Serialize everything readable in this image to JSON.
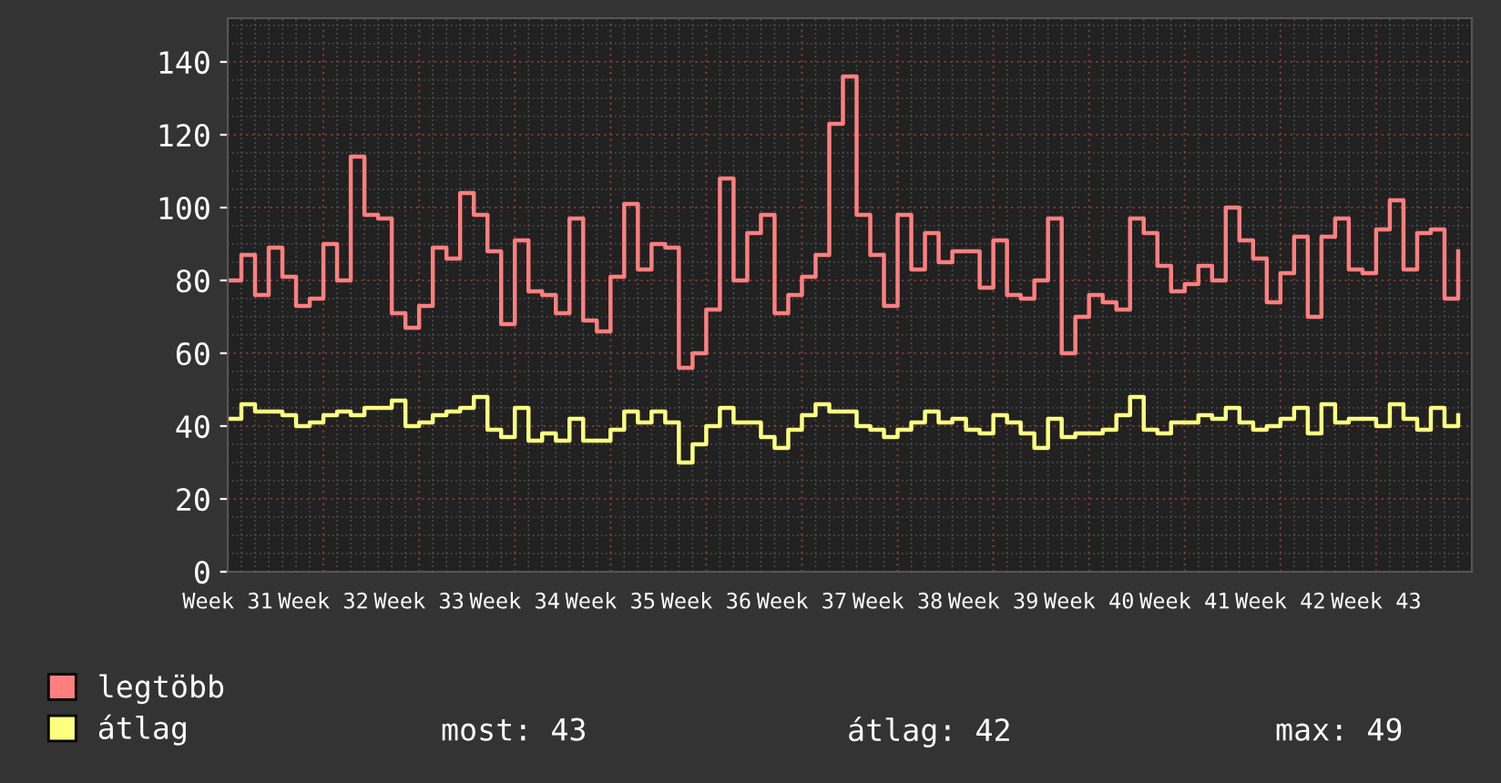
{
  "chart_data": {
    "type": "step",
    "categories": [
      "Week 31",
      null,
      null,
      null,
      null,
      null,
      null,
      "Week 32",
      null,
      null,
      null,
      null,
      null,
      null,
      "Week 33",
      null,
      null,
      null,
      null,
      null,
      null,
      "Week 34",
      null,
      null,
      null,
      null,
      null,
      null,
      "Week 35",
      null,
      null,
      null,
      null,
      null,
      null,
      "Week 36",
      null,
      null,
      null,
      null,
      null,
      null,
      "Week 37",
      null,
      null,
      null,
      null,
      null,
      null,
      "Week 38",
      null,
      null,
      null,
      null,
      null,
      null,
      "Week 39",
      null,
      null,
      null,
      null,
      null,
      null,
      "Week 40",
      null,
      null,
      null,
      null,
      null,
      null,
      "Week 41",
      null,
      null,
      null,
      null,
      null,
      null,
      "Week 42",
      null,
      null,
      null,
      null,
      null,
      null,
      "Week 43",
      null,
      null,
      null,
      null,
      null,
      null
    ],
    "ylim": [
      0,
      152
    ],
    "yticks": [
      0,
      20,
      40,
      60,
      80,
      100,
      120,
      140
    ],
    "grid": true,
    "legend": "bottom",
    "series": [
      {
        "name": "legtöbb",
        "color": "#ff7f7f",
        "values": [
          80,
          87,
          76,
          89,
          81,
          73,
          75,
          90,
          80,
          114,
          98,
          97,
          71,
          67,
          73,
          89,
          86,
          104,
          98,
          88,
          68,
          91,
          77,
          76,
          71,
          97,
          69,
          66,
          81,
          101,
          83,
          90,
          89,
          56,
          60,
          72,
          108,
          80,
          93,
          98,
          71,
          76,
          81,
          87,
          123,
          136,
          98,
          87,
          73,
          98,
          83,
          93,
          85,
          88,
          88,
          78,
          91,
          76,
          75,
          80,
          97,
          60,
          70,
          76,
          74,
          72,
          97,
          93,
          84,
          77,
          79,
          84,
          80,
          100,
          91,
          86,
          74,
          82,
          92,
          70,
          92,
          97,
          83,
          82,
          94,
          102,
          83,
          93,
          94,
          75,
          88
        ]
      },
      {
        "name": "átlag",
        "color": "#ffff80",
        "values": [
          42,
          46,
          44,
          44,
          43,
          40,
          41,
          43,
          44,
          43,
          45,
          45,
          47,
          40,
          41,
          43,
          44,
          45,
          48,
          39,
          37,
          45,
          36,
          38,
          36,
          42,
          36,
          36,
          39,
          44,
          41,
          44,
          41,
          30,
          35,
          40,
          45,
          41,
          41,
          37,
          34,
          39,
          43,
          46,
          44,
          44,
          40,
          39,
          37,
          39,
          41,
          44,
          41,
          42,
          39,
          38,
          43,
          41,
          38,
          34,
          42,
          37,
          38,
          38,
          39,
          43,
          48,
          39,
          38,
          41,
          41,
          43,
          42,
          45,
          41,
          39,
          40,
          42,
          45,
          38,
          46,
          41,
          42,
          42,
          40,
          46,
          42,
          39,
          45,
          40,
          43
        ]
      }
    ],
    "annotations": [
      "most: 43",
      "átlag: 42",
      "max: 49"
    ]
  }
}
